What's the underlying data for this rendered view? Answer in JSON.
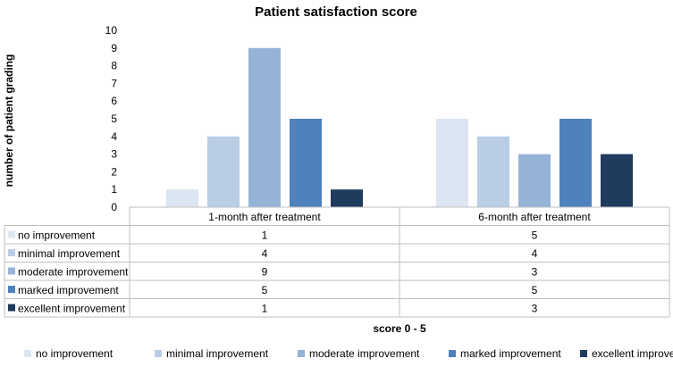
{
  "chart_data": {
    "type": "bar",
    "title": "Patient satisfaction score",
    "xlabel": "score 0 - 5",
    "ylabel": "number of patient grading",
    "ylim": [
      0,
      10
    ],
    "yticks": [
      0,
      1,
      2,
      3,
      4,
      5,
      6,
      7,
      8,
      9,
      10
    ],
    "categories": [
      "1-month after treatment",
      "6-month after treatment"
    ],
    "series": [
      {
        "name": "no improvement",
        "values": [
          1,
          5
        ],
        "color": "#dce6f2"
      },
      {
        "name": "minimal improvement",
        "values": [
          4,
          4
        ],
        "color": "#b9cde5"
      },
      {
        "name": "moderate improvement",
        "values": [
          9,
          3
        ],
        "color": "#95b3d7"
      },
      {
        "name": "marked improvement",
        "values": [
          5,
          5
        ],
        "color": "#4f81bd"
      },
      {
        "name": "excellent improvement",
        "values": [
          1,
          3
        ],
        "color": "#1f3b5e"
      }
    ],
    "grid": false,
    "data_table": true,
    "legend_position": "bottom"
  }
}
